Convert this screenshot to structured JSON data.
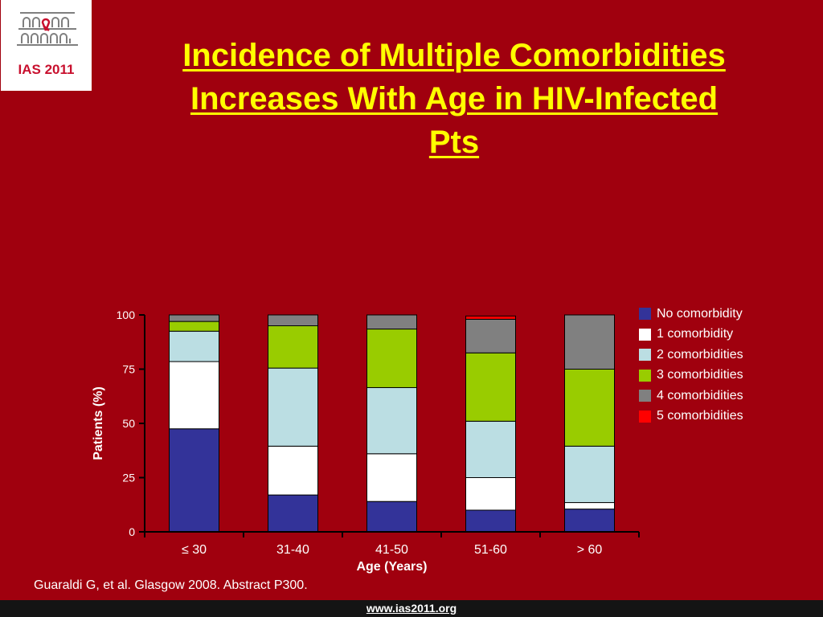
{
  "logo": {
    "text": "IAS 2011"
  },
  "title": {
    "line1": "Incidence of Multiple Comorbidities",
    "line2": "Increases With Age in HIV-Infected",
    "line3": "Pts"
  },
  "chart_data": {
    "type": "bar",
    "stacked": true,
    "categories": [
      "≤ 30",
      "31-40",
      "41-50",
      "51-60",
      "> 60"
    ],
    "xlabel": "Age (Years)",
    "ylabel": "Patients (%)",
    "ylim": [
      0,
      100
    ],
    "yticks": [
      "0",
      "25",
      "50",
      "75",
      "100"
    ],
    "grid": false,
    "legend_position": "right",
    "series": [
      {
        "name": "No comorbidity",
        "color": "#333399",
        "values": [
          47.5,
          17,
          14,
          10,
          10.5
        ]
      },
      {
        "name": "1 comorbidity",
        "color": "#FFFFFF",
        "values": [
          31,
          22.5,
          22,
          15,
          3
        ]
      },
      {
        "name": "2 comorbidities",
        "color": "#BBDEE3",
        "values": [
          14,
          36,
          30.5,
          26,
          26
        ]
      },
      {
        "name": "3 comorbidities",
        "color": "#99CC00",
        "values": [
          4.5,
          19.5,
          27,
          31.5,
          35.5
        ]
      },
      {
        "name": "4 comorbidities",
        "color": "#808080",
        "values": [
          3,
          5,
          6.5,
          15.5,
          25
        ]
      },
      {
        "name": "5 comorbidities",
        "color": "#FF0000",
        "values": [
          0,
          0,
          0,
          1.5,
          0
        ]
      }
    ]
  },
  "citation": "Guaraldi G, et al. Glasgow 2008. Abstract P300.",
  "footer": {
    "url": "www.ias2011.org"
  }
}
